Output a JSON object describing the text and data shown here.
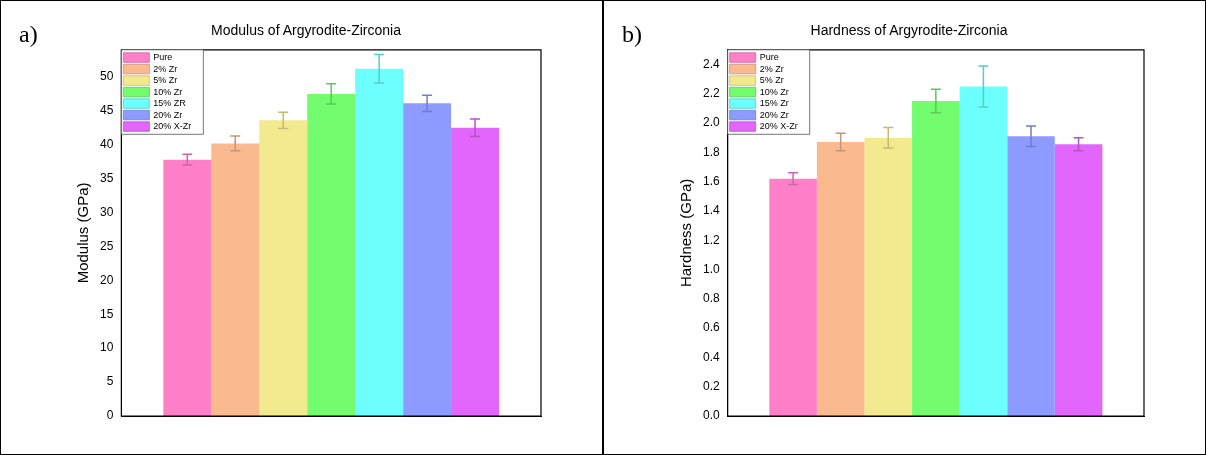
{
  "chart_data": [
    {
      "type": "bar",
      "title": "Modulus of Argyrodite-Zirconia",
      "ylabel": "Modulus (GPa)",
      "annotations": [
        "a)"
      ],
      "categories": [
        null
      ],
      "tick_labels": "y",
      "legend": "top left",
      "ylim": [
        0,
        54
      ],
      "yticks": [
        0,
        5,
        10,
        15,
        20,
        25,
        30,
        35,
        40,
        45,
        50
      ],
      "series": [
        {
          "name": "Pure",
          "color": "#ff7fc8",
          "values": [
            37.8
          ],
          "errors": [
            0.8
          ]
        },
        {
          "name": "2% Zr",
          "color": "#fbb98f",
          "values": [
            40.2
          ],
          "errors": [
            1.1
          ]
        },
        {
          "name": "5% Zr",
          "color": "#f3ea8f",
          "values": [
            43.6
          ],
          "errors": [
            1.2
          ]
        },
        {
          "name": "10% Zr",
          "color": "#72fc6e",
          "values": [
            47.5
          ],
          "errors": [
            1.5
          ]
        },
        {
          "name": "15% ZR",
          "color": "#6cfffd",
          "values": [
            51.2
          ],
          "errors": [
            2.1
          ]
        },
        {
          "name": "20% Zr",
          "color": "#8e9bfe",
          "values": [
            46.1
          ],
          "errors": [
            1.2
          ]
        },
        {
          "name": "20% X-Zr",
          "color": "#e266fc",
          "values": [
            42.5
          ],
          "errors": [
            1.3
          ]
        }
      ]
    },
    {
      "type": "bar",
      "title": "Hardness of Argyrodite-Zirconia",
      "ylabel": "Hardness (GPa)",
      "annotations": [
        "b)"
      ],
      "categories": [
        null
      ],
      "tick_labels": "y",
      "legend": "top left",
      "ylim": [
        0,
        2.5
      ],
      "yticks": [
        {
          "value": 0,
          "label": "0.0"
        },
        0.2,
        0.4,
        0.6,
        0.8,
        {
          "value": 1,
          "label": "1.0"
        },
        1.2,
        1.4,
        1.6,
        1.8,
        {
          "value": 2,
          "label": "2.0"
        },
        2.2,
        2.4
      ],
      "series": [
        {
          "name": "Pure",
          "color": "#ff7fc8",
          "values": [
            1.62
          ],
          "errors": [
            0.04
          ]
        },
        {
          "name": "2% Zr",
          "color": "#fbb98f",
          "values": [
            1.87
          ],
          "errors": [
            0.06
          ]
        },
        {
          "name": "5% Zr",
          "color": "#f3ea8f",
          "values": [
            1.9
          ],
          "errors": [
            0.07
          ]
        },
        {
          "name": "10% Zr",
          "color": "#72fc6e",
          "values": [
            2.15
          ],
          "errors": [
            0.08
          ]
        },
        {
          "name": "15% Zr",
          "color": "#6cfffd",
          "values": [
            2.25
          ],
          "errors": [
            0.14
          ]
        },
        {
          "name": "20% Zr",
          "color": "#8e9bfe",
          "values": [
            1.91
          ],
          "errors": [
            0.07
          ]
        },
        {
          "name": "20% X-Zr",
          "color": "#e266fc",
          "values": [
            1.855
          ],
          "errors": [
            0.045
          ]
        }
      ]
    }
  ]
}
